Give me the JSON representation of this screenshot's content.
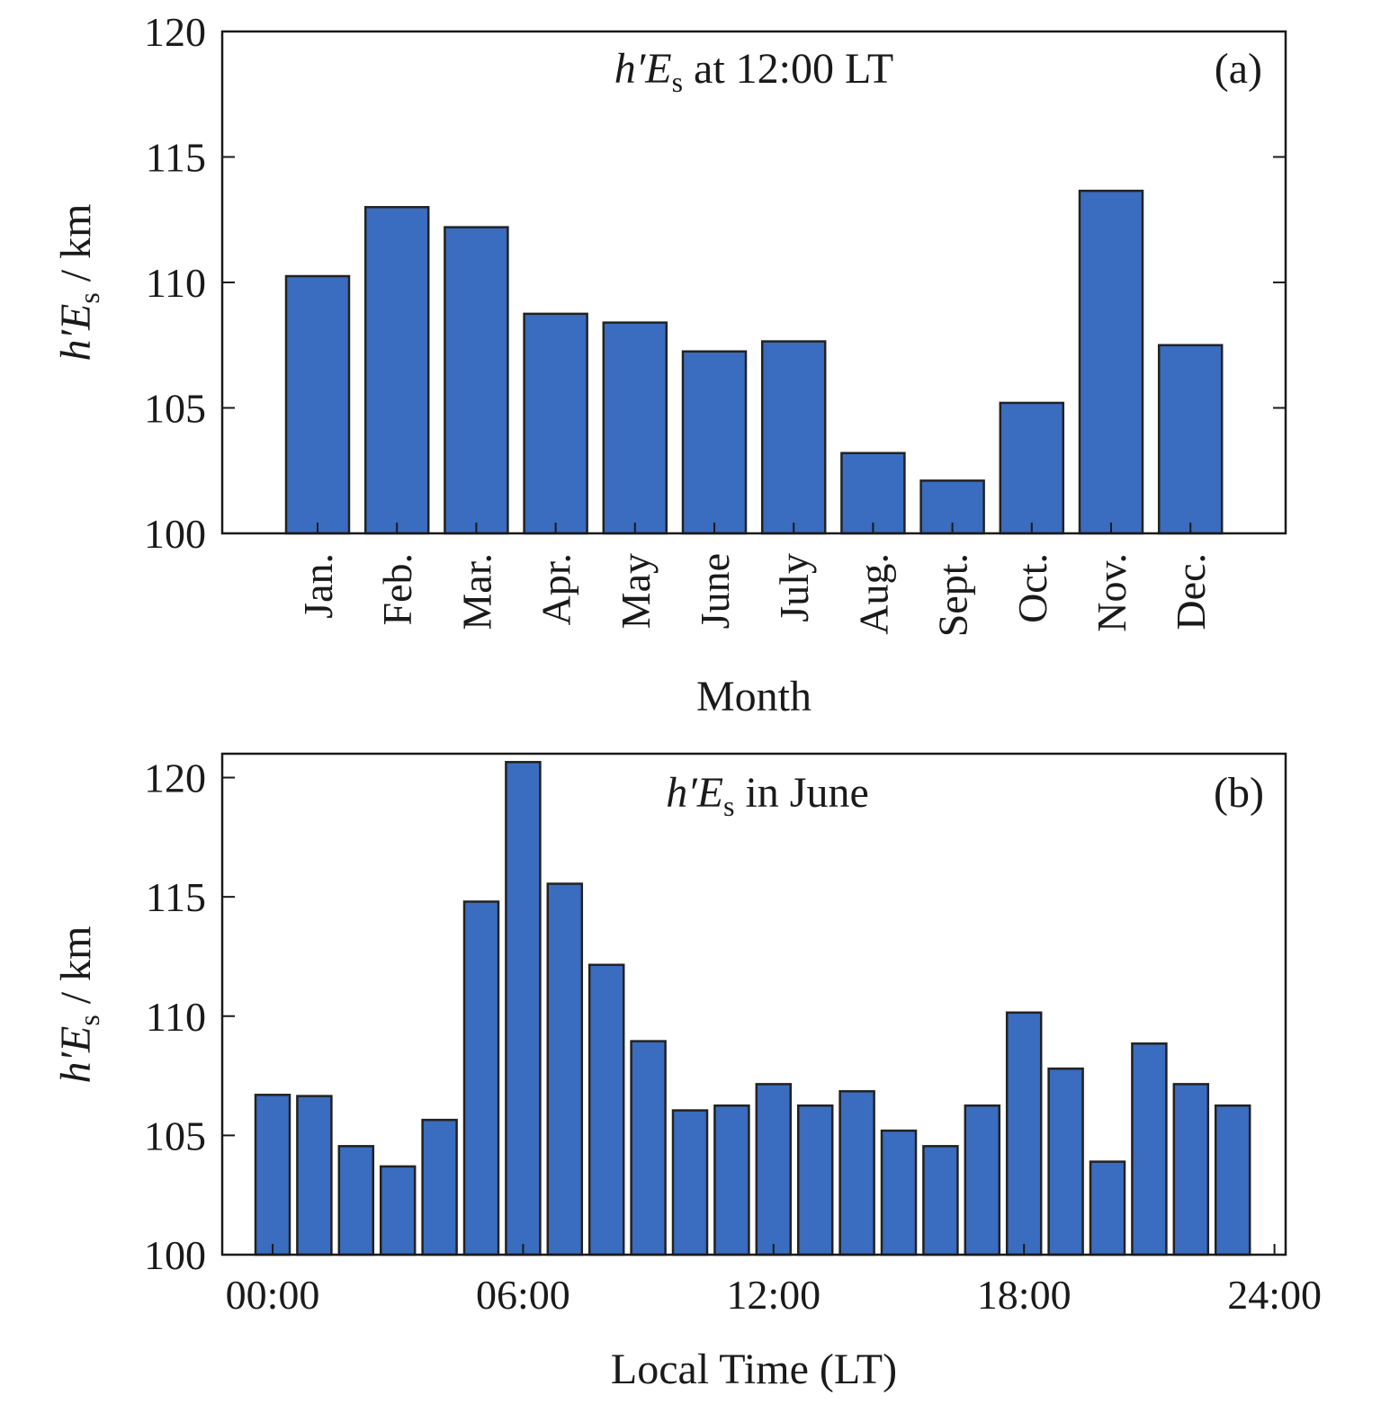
{
  "chart_data": [
    {
      "panel": "a",
      "type": "bar",
      "panel_label": "(a)",
      "title_italic": "h′E",
      "title_subscript": "s",
      "title_rest": " at 12:00 LT",
      "ylabel_italic": "h′E",
      "ylabel_subscript": "s",
      "ylabel_rest": " / km",
      "xlabel": "Month",
      "ylim": [
        100,
        120
      ],
      "yticks": [
        100,
        105,
        110,
        115,
        120
      ],
      "categories": [
        "Jan.",
        "Feb.",
        "Mar.",
        "Apr.",
        "May",
        "June",
        "July",
        "Aug.",
        "Sept.",
        "Oct.",
        "Nov.",
        "Dec."
      ],
      "values": [
        110.25,
        113.0,
        112.2,
        108.75,
        108.4,
        107.25,
        107.65,
        103.2,
        102.1,
        105.2,
        113.65,
        107.5
      ],
      "bar_color": "#3a6cbf",
      "grid": false
    },
    {
      "panel": "b",
      "type": "bar",
      "panel_label": "(b)",
      "title_italic": "h′E",
      "title_subscript": "s",
      "title_rest": " in June",
      "ylabel_italic": "h′E",
      "ylabel_subscript": "s",
      "ylabel_rest": " / km",
      "xlabel": "Local Time (LT)",
      "ylim": [
        100,
        121
      ],
      "yticks": [
        100,
        105,
        110,
        115,
        120
      ],
      "xlim": [
        -0.5,
        24
      ],
      "xtick_values": [
        0,
        6,
        12,
        18,
        24
      ],
      "xtick_labels": [
        "00:00",
        "06:00",
        "12:00",
        "18:00",
        "24:00"
      ],
      "x": [
        0,
        1,
        2,
        3,
        4,
        5,
        6,
        7,
        8,
        9,
        10,
        11,
        12,
        13,
        14,
        15,
        16,
        17,
        18,
        19,
        20,
        21,
        22,
        23
      ],
      "values": [
        106.7,
        106.65,
        104.55,
        103.7,
        105.65,
        114.8,
        120.65,
        115.55,
        112.15,
        108.95,
        106.05,
        106.25,
        107.15,
        106.25,
        106.85,
        105.2,
        104.55,
        106.25,
        110.15,
        107.8,
        103.9,
        108.85,
        107.15,
        106.25
      ],
      "bar_color": "#3a6cbf",
      "grid": false
    }
  ]
}
